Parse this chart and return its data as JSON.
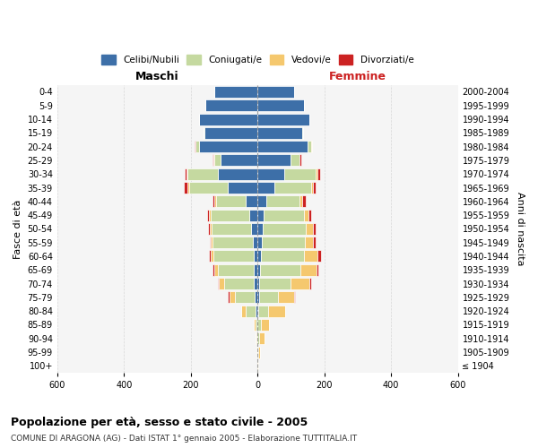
{
  "age_groups": [
    "100+",
    "95-99",
    "90-94",
    "85-89",
    "80-84",
    "75-79",
    "70-74",
    "65-69",
    "60-64",
    "55-59",
    "50-54",
    "45-49",
    "40-44",
    "35-39",
    "30-34",
    "25-29",
    "20-24",
    "15-19",
    "10-14",
    "5-9",
    "0-4"
  ],
  "birth_years": [
    "≤ 1904",
    "1905-1909",
    "1910-1914",
    "1915-1919",
    "1920-1924",
    "1925-1929",
    "1930-1934",
    "1935-1939",
    "1940-1944",
    "1945-1949",
    "1950-1954",
    "1955-1959",
    "1960-1964",
    "1965-1969",
    "1970-1974",
    "1975-1979",
    "1980-1984",
    "1985-1989",
    "1990-1994",
    "1995-1999",
    "2000-2004"
  ],
  "maschi": {
    "celibi": [
      0,
      0,
      0,
      0,
      5,
      8,
      10,
      10,
      12,
      14,
      18,
      25,
      35,
      90,
      120,
      110,
      175,
      160,
      175,
      155,
      130
    ],
    "coniugati": [
      0,
      1,
      3,
      5,
      30,
      60,
      90,
      110,
      120,
      120,
      120,
      115,
      90,
      115,
      90,
      20,
      10,
      2,
      0,
      0,
      0
    ],
    "vedovi": [
      0,
      1,
      3,
      5,
      15,
      15,
      15,
      10,
      8,
      5,
      5,
      5,
      5,
      5,
      3,
      2,
      2,
      0,
      0,
      0,
      0
    ],
    "divorziati": [
      0,
      0,
      0,
      0,
      0,
      5,
      5,
      5,
      5,
      5,
      5,
      5,
      5,
      10,
      5,
      2,
      1,
      0,
      0,
      0,
      0
    ]
  },
  "femmine": {
    "nubili": [
      0,
      0,
      0,
      0,
      2,
      5,
      5,
      8,
      10,
      12,
      15,
      18,
      25,
      50,
      80,
      100,
      150,
      135,
      155,
      140,
      110
    ],
    "coniugate": [
      0,
      2,
      5,
      10,
      30,
      55,
      95,
      120,
      130,
      130,
      130,
      120,
      100,
      110,
      95,
      25,
      10,
      2,
      0,
      0,
      0
    ],
    "vedove": [
      1,
      5,
      15,
      25,
      50,
      50,
      55,
      50,
      40,
      25,
      20,
      15,
      10,
      5,
      5,
      2,
      2,
      0,
      0,
      0,
      0
    ],
    "divorziate": [
      0,
      0,
      0,
      0,
      0,
      2,
      5,
      5,
      10,
      8,
      8,
      8,
      10,
      10,
      8,
      3,
      2,
      0,
      0,
      0,
      0
    ]
  },
  "colors": {
    "celibi": "#3d6fa8",
    "coniugati": "#c5d9a0",
    "vedovi": "#f5c86e",
    "divorziati": "#cc2222"
  },
  "title": "Popolazione per età, sesso e stato civile - 2005",
  "subtitle": "COMUNE DI ARAGONA (AG) - Dati ISTAT 1° gennaio 2005 - Elaborazione TUTTITALIA.IT",
  "xlabel_left": "Maschi",
  "xlabel_right": "Femmine",
  "ylabel_left": "Fasce di età",
  "ylabel_right": "Anni di nascita",
  "xlim": 600,
  "legend_labels": [
    "Celibi/Nubili",
    "Coniugati/e",
    "Vedovi/e",
    "Divorziati/e"
  ],
  "bg_color": "#f5f5f5",
  "bar_edge_color": "white"
}
